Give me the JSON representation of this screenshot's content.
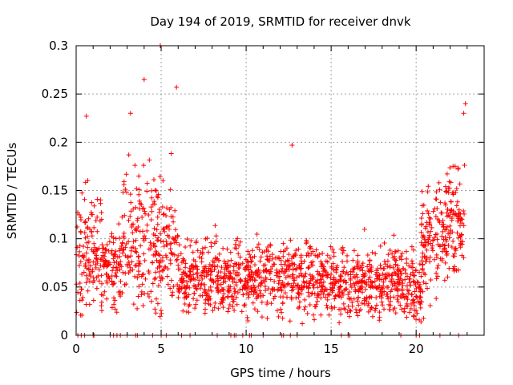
{
  "chart_data": {
    "type": "scatter",
    "title": "Day 194 of 2019, SRMTID for receiver dnvk",
    "xlabel": "GPS time / hours",
    "ylabel": "SRMTID / TECUs",
    "xlim": [
      0,
      24
    ],
    "ylim": [
      0,
      0.3
    ],
    "x_ticks": [
      0,
      5,
      10,
      15,
      20
    ],
    "x_tick_labels": [
      "0",
      "5",
      "10",
      "15",
      "20"
    ],
    "y_ticks": [
      0,
      0.05,
      0.1,
      0.15,
      0.2,
      0.25,
      0.3
    ],
    "y_tick_labels": [
      "0",
      "0.05",
      "0.1",
      "0.15",
      "0.2",
      "0.25",
      "0.3"
    ],
    "grid": true,
    "marker": "+",
    "series_color": "#ff0000",
    "series": [
      {
        "name": "SRMTID",
        "points_note": "dense scatter; representative extrema",
        "highlights": [
          {
            "x": 4.95,
            "y": 0.3
          },
          {
            "x": 4.0,
            "y": 0.265
          },
          {
            "x": 5.9,
            "y": 0.257
          },
          {
            "x": 3.2,
            "y": 0.23
          },
          {
            "x": 0.6,
            "y": 0.227
          },
          {
            "x": 12.7,
            "y": 0.197
          },
          {
            "x": 22.9,
            "y": 0.24
          },
          {
            "x": 22.8,
            "y": 0.23
          },
          {
            "x": 10.1,
            "y": 0.015
          },
          {
            "x": 13.3,
            "y": 0.012
          }
        ]
      }
    ],
    "zero_points_x": [
      0.1,
      0.3,
      0.5,
      1.0,
      1.05,
      2.0,
      2.2,
      2.4,
      2.6,
      3.0,
      3.5,
      3.6,
      4.5,
      5.0,
      5.3,
      6.2,
      6.7,
      8.3,
      9.1,
      9.3,
      9.4,
      9.8,
      10.2,
      10.3,
      11.0,
      12.1,
      12.2,
      12.6,
      13.0,
      15.6,
      16.0,
      16.1,
      19.1,
      20.0,
      20.2,
      21.4,
      22.5
    ]
  }
}
